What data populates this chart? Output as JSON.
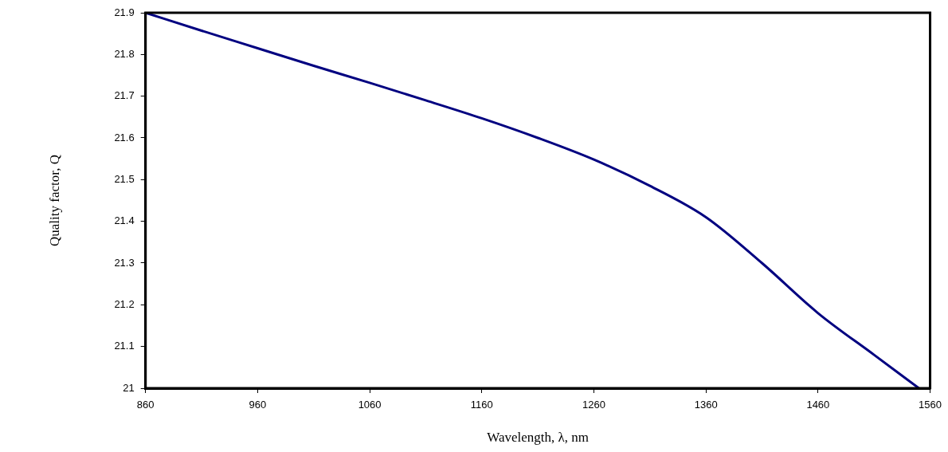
{
  "chart_data": {
    "type": "line",
    "xlabel": "Wavelength, λ, nm",
    "ylabel": "Quality factor, Q",
    "xlim": [
      860,
      1560
    ],
    "xticks": [
      860,
      960,
      1060,
      1160,
      1260,
      1360,
      1460,
      1560
    ],
    "ylim": [
      21,
      21.9
    ],
    "yticks": [
      21,
      21.1,
      21.2,
      21.3,
      21.4,
      21.5,
      21.6,
      21.7,
      21.8,
      21.9
    ],
    "grid": false,
    "legend": false,
    "marker": "none",
    "line_style": "solid",
    "series": [
      {
        "color": "#000080",
        "x": [
          860,
          910,
          960,
          1010,
          1060,
          1110,
          1160,
          1210,
          1260,
          1310,
          1360,
          1410,
          1460,
          1510,
          1550
        ],
        "values": [
          21.9,
          21.857,
          21.815,
          21.773,
          21.732,
          21.69,
          21.647,
          21.6,
          21.548,
          21.485,
          21.41,
          21.3,
          21.18,
          21.08,
          21.0
        ]
      }
    ]
  }
}
